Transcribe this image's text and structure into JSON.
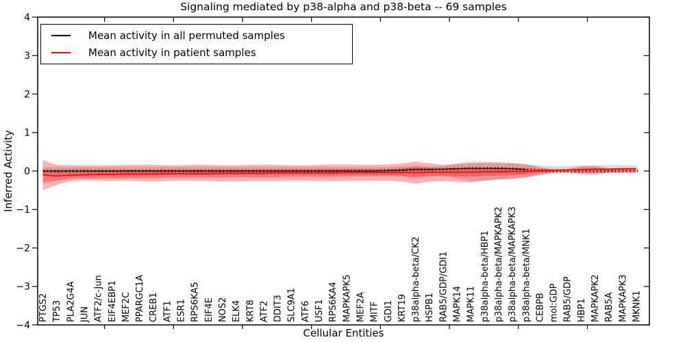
{
  "figure": {
    "title": "Signaling mediated by p38-alpha and p38-beta -- 69 samples",
    "xlabel": "Cellular Entities",
    "ylabel": "Inferred Activity"
  },
  "legend": {
    "items": [
      {
        "label": "Mean activity in all permuted samples",
        "color": "#000000"
      },
      {
        "label": "Mean activity in patient samples",
        "color": "#ff0000"
      }
    ],
    "position": "upper left"
  },
  "chart_data": {
    "type": "line",
    "title": "Signaling mediated by p38-alpha and p38-beta -- 69 samples",
    "xlabel": "Cellular Entities",
    "ylabel": "Inferred Activity",
    "ylim": [
      -4,
      4
    ],
    "ytick_values": [
      -4,
      -3,
      -2,
      -1,
      0,
      1,
      2,
      3,
      4
    ],
    "ytick_labels": [
      "−4",
      "−3",
      "−2",
      "−1",
      "0",
      "1",
      "2",
      "3",
      "4"
    ],
    "grid": false,
    "legend_position": "upper left",
    "categories": [
      "PTGS2",
      "TP53",
      "PLA2G4A",
      "JUN",
      "ATF2/c-Jun",
      "EIF4EBP1",
      "MEF2C",
      "PPARGC1A",
      "CREB1",
      "ATF1",
      "ESR1",
      "RPS6KA5",
      "EIF4E",
      "NOS2",
      "ELK4",
      "KRT8",
      "ATF2",
      "DDIT3",
      "SLC9A1",
      "ATF6",
      "USF1",
      "RPS6KA4",
      "MAPKAPK5",
      "MEF2A",
      "MITF",
      "GDI1",
      "KRT19",
      "p38alpha-beta/CK2",
      "HSPB1",
      "RAB5/GDP/GDI1",
      "MAPK14",
      "MAPK11",
      "p38alpha-beta/HBP1",
      "p38alpha-beta/MAPKAPK2",
      "p38alpha-beta/MAPKAPK3",
      "p38alpha-beta/MNK1",
      "CEBPB",
      "mol:GDP",
      "RAB5/GDP",
      "HBP1",
      "MAPKAPK2",
      "RAB5A",
      "MAPKAPK3",
      "MKNK1"
    ],
    "series": [
      {
        "name": "Mean activity in all permuted samples",
        "color": "#000000",
        "values": [
          0,
          0,
          0,
          0,
          0,
          0,
          0,
          0,
          0,
          0,
          0,
          0,
          0,
          0,
          0,
          0,
          0,
          0,
          0,
          0,
          0,
          0,
          0,
          0,
          0,
          0.01,
          0.02,
          0.04,
          0.04,
          0.05,
          0.06,
          0.07,
          0.07,
          0.07,
          0.06,
          0.04,
          0.01,
          0,
          0,
          0,
          0,
          0,
          0,
          0
        ]
      },
      {
        "name": "Mean activity in patient samples",
        "color": "#ff0000",
        "values": [
          -0.1,
          -0.13,
          -0.11,
          -0.1,
          -0.09,
          -0.09,
          -0.08,
          -0.08,
          -0.08,
          -0.07,
          -0.07,
          -0.07,
          -0.07,
          -0.06,
          -0.06,
          -0.06,
          -0.06,
          -0.05,
          -0.05,
          -0.05,
          -0.05,
          -0.05,
          -0.04,
          -0.04,
          -0.04,
          -0.04,
          -0.04,
          -0.04,
          -0.03,
          -0.03,
          -0.03,
          -0.03,
          -0.02,
          -0.02,
          -0.01,
          -0.01,
          0.01,
          0.02,
          0.03,
          0.04,
          0.05,
          0.05,
          0.06,
          0.06
        ]
      }
    ],
    "bands": [
      {
        "name": "permuted-range",
        "color": "rgba(0,0,0,0.15)",
        "top": [
          0.1,
          0.1,
          0.1,
          0.1,
          0.1,
          0.1,
          0.1,
          0.1,
          0.1,
          0.1,
          0.1,
          0.1,
          0.1,
          0.1,
          0.1,
          0.1,
          0.1,
          0.1,
          0.1,
          0.1,
          0.1,
          0.1,
          0.1,
          0.1,
          0.1,
          0.1,
          0.12,
          0.14,
          0.12,
          0.12,
          0.2,
          0.24,
          0.24,
          0.23,
          0.21,
          0.18,
          0.14,
          0.12,
          0.13,
          0.14,
          0.15,
          0.15,
          0.15,
          0.15
        ],
        "bottom": [
          -0.1,
          -0.1,
          -0.1,
          -0.1,
          -0.1,
          -0.1,
          -0.1,
          -0.1,
          -0.1,
          -0.1,
          -0.1,
          -0.1,
          -0.1,
          -0.1,
          -0.1,
          -0.1,
          -0.1,
          -0.1,
          -0.1,
          -0.1,
          -0.1,
          -0.1,
          -0.1,
          -0.1,
          -0.1,
          -0.1,
          -0.12,
          -0.14,
          -0.12,
          -0.12,
          -0.2,
          -0.26,
          -0.25,
          -0.22,
          -0.2,
          -0.16,
          -0.1,
          -0.07,
          -0.06,
          -0.06,
          -0.06,
          -0.05,
          -0.05,
          -0.05
        ]
      },
      {
        "name": "patient-range-outer",
        "color": "rgba(255,0,0,0.30)",
        "top": [
          0.28,
          0.16,
          0.15,
          0.15,
          0.15,
          0.15,
          0.16,
          0.16,
          0.16,
          0.15,
          0.15,
          0.16,
          0.16,
          0.15,
          0.15,
          0.16,
          0.16,
          0.16,
          0.15,
          0.15,
          0.16,
          0.17,
          0.17,
          0.16,
          0.16,
          0.17,
          0.19,
          0.24,
          0.2,
          0.16,
          0.18,
          0.2,
          0.21,
          0.21,
          0.2,
          0.17,
          0.1,
          0.04,
          0.05,
          0.12,
          0.13,
          0.06,
          0.05,
          0.05
        ],
        "bottom": [
          -0.5,
          -0.36,
          -0.26,
          -0.24,
          -0.25,
          -0.26,
          -0.25,
          -0.26,
          -0.27,
          -0.26,
          -0.25,
          -0.26,
          -0.26,
          -0.27,
          -0.27,
          -0.26,
          -0.26,
          -0.26,
          -0.25,
          -0.25,
          -0.26,
          -0.26,
          -0.26,
          -0.25,
          -0.25,
          -0.25,
          -0.27,
          -0.33,
          -0.28,
          -0.26,
          -0.28,
          -0.3,
          -0.25,
          -0.22,
          -0.2,
          -0.17,
          -0.1,
          -0.04,
          -0.04,
          -0.08,
          -0.09,
          -0.05,
          -0.04,
          -0.04
        ]
      },
      {
        "name": "patient-range-inner",
        "color": "rgba(255,0,0,0.32)",
        "top": [
          0.02,
          0.0,
          0.01,
          0.02,
          0.02,
          0.02,
          0.03,
          0.03,
          0.03,
          0.03,
          0.03,
          0.03,
          0.03,
          0.03,
          0.03,
          0.03,
          0.04,
          0.04,
          0.04,
          0.04,
          0.04,
          0.05,
          0.05,
          0.05,
          0.05,
          0.05,
          0.07,
          0.1,
          0.08,
          0.06,
          0.07,
          0.08,
          0.08,
          0.08,
          0.08,
          0.07,
          0.05,
          0.03,
          0.03,
          0.06,
          0.07,
          0.04,
          0.04,
          0.04
        ],
        "bottom": [
          -0.3,
          -0.25,
          -0.2,
          -0.19,
          -0.19,
          -0.19,
          -0.18,
          -0.18,
          -0.18,
          -0.17,
          -0.17,
          -0.17,
          -0.17,
          -0.17,
          -0.16,
          -0.16,
          -0.16,
          -0.16,
          -0.15,
          -0.15,
          -0.15,
          -0.15,
          -0.14,
          -0.14,
          -0.14,
          -0.13,
          -0.14,
          -0.17,
          -0.14,
          -0.13,
          -0.14,
          -0.15,
          -0.13,
          -0.12,
          -0.11,
          -0.09,
          -0.05,
          -0.02,
          -0.01,
          -0.03,
          -0.04,
          -0.02,
          -0.01,
          -0.01
        ]
      }
    ]
  }
}
